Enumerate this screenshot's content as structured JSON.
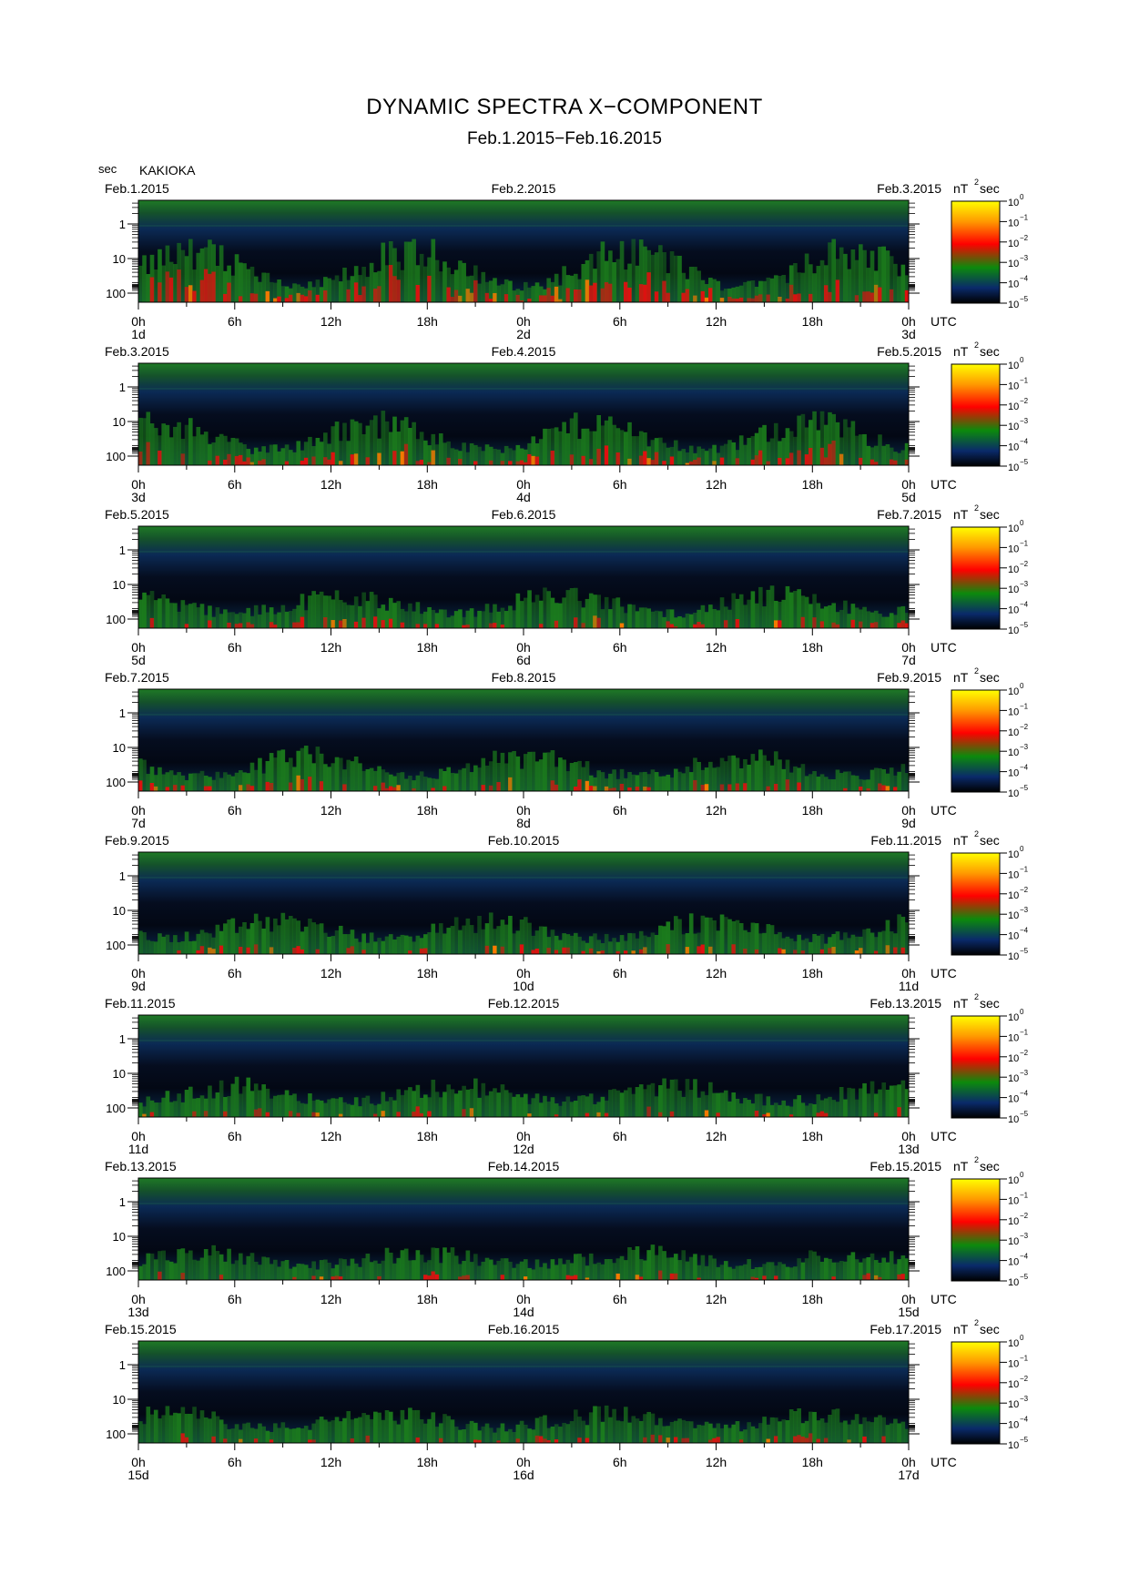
{
  "title": "DYNAMIC SPECTRA X−COMPONENT",
  "subtitle": "Feb.1.2015−Feb.16.2015",
  "chart_data": {
    "type": "heatmap",
    "yunit": "sec",
    "station": "KAKIOKA",
    "y_ticks": [
      "1",
      "10",
      "100"
    ],
    "x_ticks": [
      "0h",
      "6h",
      "12h",
      "18h",
      "0h",
      "6h",
      "12h",
      "18h",
      "0h"
    ],
    "x_unit": "UTC",
    "colorbar": {
      "unit": "nT",
      "unit_sup": "2",
      "unit_suffix": "sec",
      "ticks": [
        {
          "base": "10",
          "exp": "0"
        },
        {
          "base": "10",
          "exp": "−1"
        },
        {
          "base": "10",
          "exp": "−2"
        },
        {
          "base": "10",
          "exp": "−3"
        },
        {
          "base": "10",
          "exp": "−4"
        },
        {
          "base": "10",
          "exp": "−5"
        }
      ],
      "colors": [
        "#ffff00",
        "#ff9900",
        "#ff0000",
        "#0c8a0c",
        "#0a2a6a",
        "#000000"
      ]
    },
    "panels": [
      {
        "start": "Feb.1.2015",
        "mid": "Feb.2.2015",
        "end": "Feb.3.2015",
        "days": [
          "1d",
          "2d",
          "3d"
        ],
        "activity": 0.95
      },
      {
        "start": "Feb.3.2015",
        "mid": "Feb.4.2015",
        "end": "Feb.5.2015",
        "days": [
          "3d",
          "4d",
          "5d"
        ],
        "activity": 0.7
      },
      {
        "start": "Feb.5.2015",
        "mid": "Feb.6.2015",
        "end": "Feb.7.2015",
        "days": [
          "5d",
          "6d",
          "7d"
        ],
        "activity": 0.45
      },
      {
        "start": "Feb.7.2015",
        "mid": "Feb.8.2015",
        "end": "Feb.9.2015",
        "days": [
          "7d",
          "8d",
          "9d"
        ],
        "activity": 0.5
      },
      {
        "start": "Feb.9.2015",
        "mid": "Feb.10.2015",
        "end": "Feb.11.2015",
        "days": [
          "9d",
          "10d",
          "11d"
        ],
        "activity": 0.45
      },
      {
        "start": "Feb.11.2015",
        "mid": "Feb.12.2015",
        "end": "Feb.13.2015",
        "days": [
          "11d",
          "12d",
          "13d"
        ],
        "activity": 0.4
      },
      {
        "start": "Feb.13.2015",
        "mid": "Feb.14.2015",
        "end": "Feb.15.2015",
        "days": [
          "13d",
          "14d",
          "15d"
        ],
        "activity": 0.3
      },
      {
        "start": "Feb.15.2015",
        "mid": "Feb.16.2015",
        "end": "Feb.17.2015",
        "days": [
          "15d",
          "16d",
          "17d"
        ],
        "activity": 0.35
      }
    ]
  }
}
